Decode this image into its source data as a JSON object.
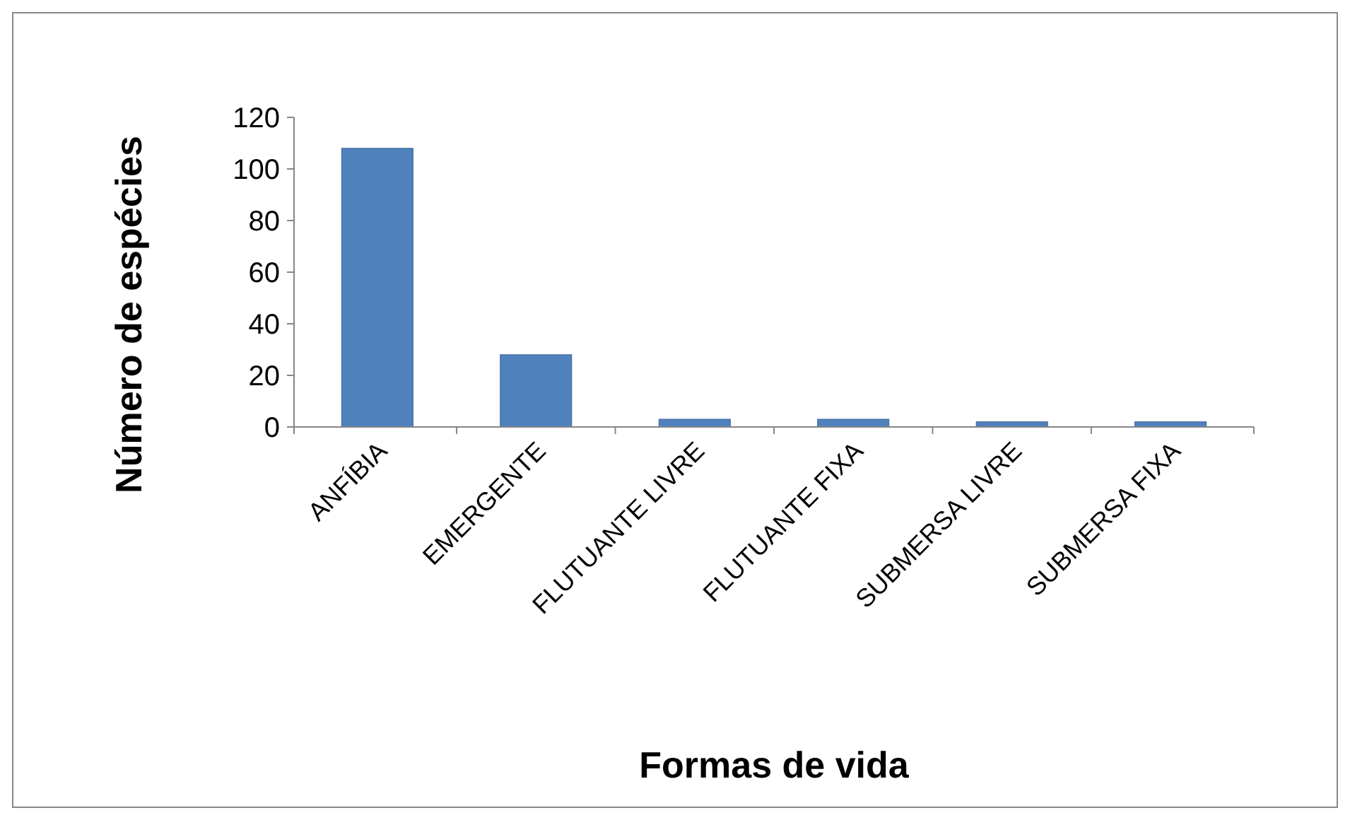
{
  "chart_data": {
    "type": "bar",
    "xlabel": "Formas de vida",
    "ylabel": "Número de espécies",
    "categories": [
      "ANFÍBIA",
      "EMERGENTE",
      "FLUTUANTE LIVRE",
      "FLUTUANTE FIXA",
      "SUBMERSA LIVRE",
      "SUBMERSA FIXA"
    ],
    "values": [
      108,
      28,
      3,
      3,
      2,
      2
    ],
    "color": "#4f81bd",
    "ylim": [
      0,
      120
    ],
    "yticks": [
      0,
      20,
      40,
      60,
      80,
      100,
      120
    ],
    "grid": false
  }
}
